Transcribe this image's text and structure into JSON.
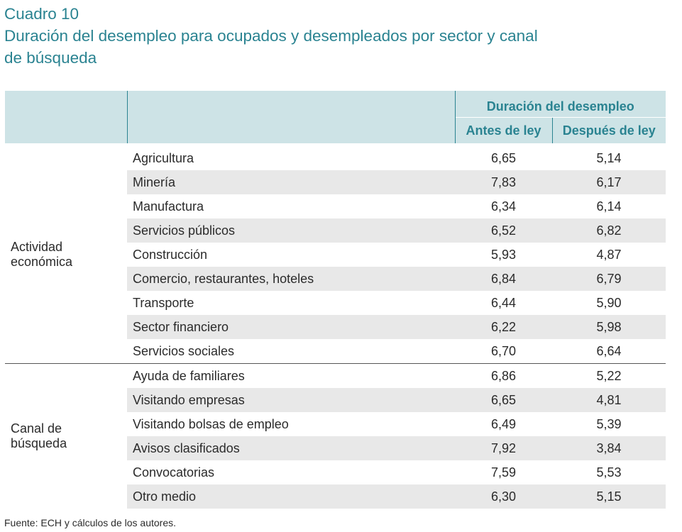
{
  "title": {
    "line1": "Cuadro 10",
    "line2": "Duración del desempleo para ocupados y desempleados por sector y canal",
    "line3": "de búsqueda"
  },
  "table": {
    "group_header": "Duración del desempleo",
    "col_before": "Antes de ley",
    "col_after": "Después de ley",
    "groups": [
      {
        "name_line1": "Actividad",
        "name_line2": "económica",
        "rows": [
          {
            "label": "Agricultura",
            "before": "6,65",
            "after": "5,14"
          },
          {
            "label": "Minería",
            "before": "7,83",
            "after": "6,17"
          },
          {
            "label": "Manufactura",
            "before": "6,34",
            "after": "6,14"
          },
          {
            "label": "Servicios públicos",
            "before": "6,52",
            "after": "6,82"
          },
          {
            "label": "Construcción",
            "before": "5,93",
            "after": "4,87"
          },
          {
            "label": "Comercio, restaurantes, hoteles",
            "before": "6,84",
            "after": "6,79"
          },
          {
            "label": "Transporte",
            "before": "6,44",
            "after": "5,90"
          },
          {
            "label": "Sector financiero",
            "before": "6,22",
            "after": "5,98"
          },
          {
            "label": "Servicios sociales",
            "before": "6,70",
            "after": "6,64"
          }
        ]
      },
      {
        "name_line1": "Canal de",
        "name_line2": "búsqueda",
        "rows": [
          {
            "label": "Ayuda de familiares",
            "before": "6,86",
            "after": "5,22"
          },
          {
            "label": "Visitando empresas",
            "before": "6,65",
            "after": "4,81"
          },
          {
            "label": "Visitando bolsas de empleo",
            "before": "6,49",
            "after": "5,39"
          },
          {
            "label": "Avisos clasificados",
            "before": "7,92",
            "after": "3,84"
          },
          {
            "label": "Convocatorias",
            "before": "7,59",
            "after": "5,53"
          },
          {
            "label": "Otro medio",
            "before": "6,30",
            "after": "5,15"
          }
        ]
      }
    ]
  },
  "source": {
    "label": "Fuente:",
    "text": "ECH y cálculos de los autores."
  }
}
